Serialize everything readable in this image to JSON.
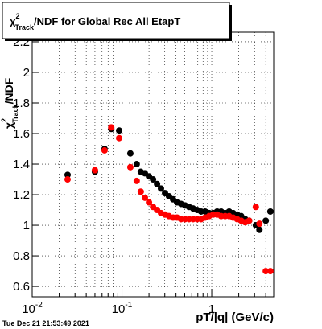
{
  "chart_data": {
    "type": "scatter",
    "title": {
      "symbol": "χ",
      "sup": "2",
      "sub": "Track",
      "text": "/NDF for Global Rec All EtapT"
    },
    "y_label": {
      "symbol": "χ",
      "sup": "2",
      "sub": "Track",
      "text": "/NDF"
    },
    "x_label": "pT/|q| (GeV/c)",
    "timestamp": "Tue Dec 21 21:53:49 2021",
    "x_scale": "log",
    "grid": true,
    "xlim": [
      0.01,
      4.9
    ],
    "ylim": [
      0.532,
      2.263
    ],
    "xticks": [
      {
        "value": 0.01,
        "label": "10",
        "exponent": "-2"
      },
      {
        "value": 0.1,
        "label": "10",
        "exponent": "-1"
      },
      1
    ],
    "yticks": [
      0.6,
      0.8,
      1,
      1.2,
      1.4,
      1.6,
      1.8,
      2,
      2.2
    ],
    "x": [
      0.0248,
      0.05,
      0.064,
      0.076,
      0.093,
      0.124,
      0.146,
      0.162,
      0.18,
      0.2,
      0.222,
      0.246,
      0.272,
      0.302,
      0.334,
      0.371,
      0.411,
      0.455,
      0.505,
      0.559,
      0.62,
      0.687,
      0.761,
      0.843,
      0.935,
      1.036,
      1.148,
      1.272,
      1.41,
      1.563,
      1.731,
      1.919,
      2.13,
      2.36,
      2.61,
      3.1,
      3.4,
      4.0,
      4.5
    ],
    "series": [
      {
        "color": "#000000",
        "values": [
          1.33,
          1.35,
          1.5,
          1.63,
          1.62,
          1.47,
          1.4,
          1.35,
          1.34,
          1.32,
          1.3,
          1.27,
          1.24,
          1.21,
          1.19,
          1.17,
          1.15,
          1.14,
          1.13,
          1.12,
          1.11,
          1.1,
          1.09,
          1.09,
          1.08,
          1.08,
          1.09,
          1.09,
          1.08,
          1.09,
          1.08,
          1.07,
          1.06,
          1.04,
          1.03,
          1.0,
          0.97,
          1.03,
          1.09
        ]
      },
      {
        "color": "#ff0000",
        "values": [
          1.3,
          1.36,
          1.49,
          1.64,
          1.57,
          1.38,
          1.29,
          1.22,
          1.18,
          1.15,
          1.12,
          1.1,
          1.08,
          1.07,
          1.06,
          1.05,
          1.05,
          1.04,
          1.04,
          1.04,
          1.04,
          1.04,
          1.04,
          1.05,
          1.06,
          1.07,
          1.07,
          1.06,
          1.06,
          1.06,
          1.05,
          1.04,
          1.03,
          1.02,
          1.03,
          1.12,
          1.01,
          0.7,
          0.7
        ]
      }
    ]
  }
}
